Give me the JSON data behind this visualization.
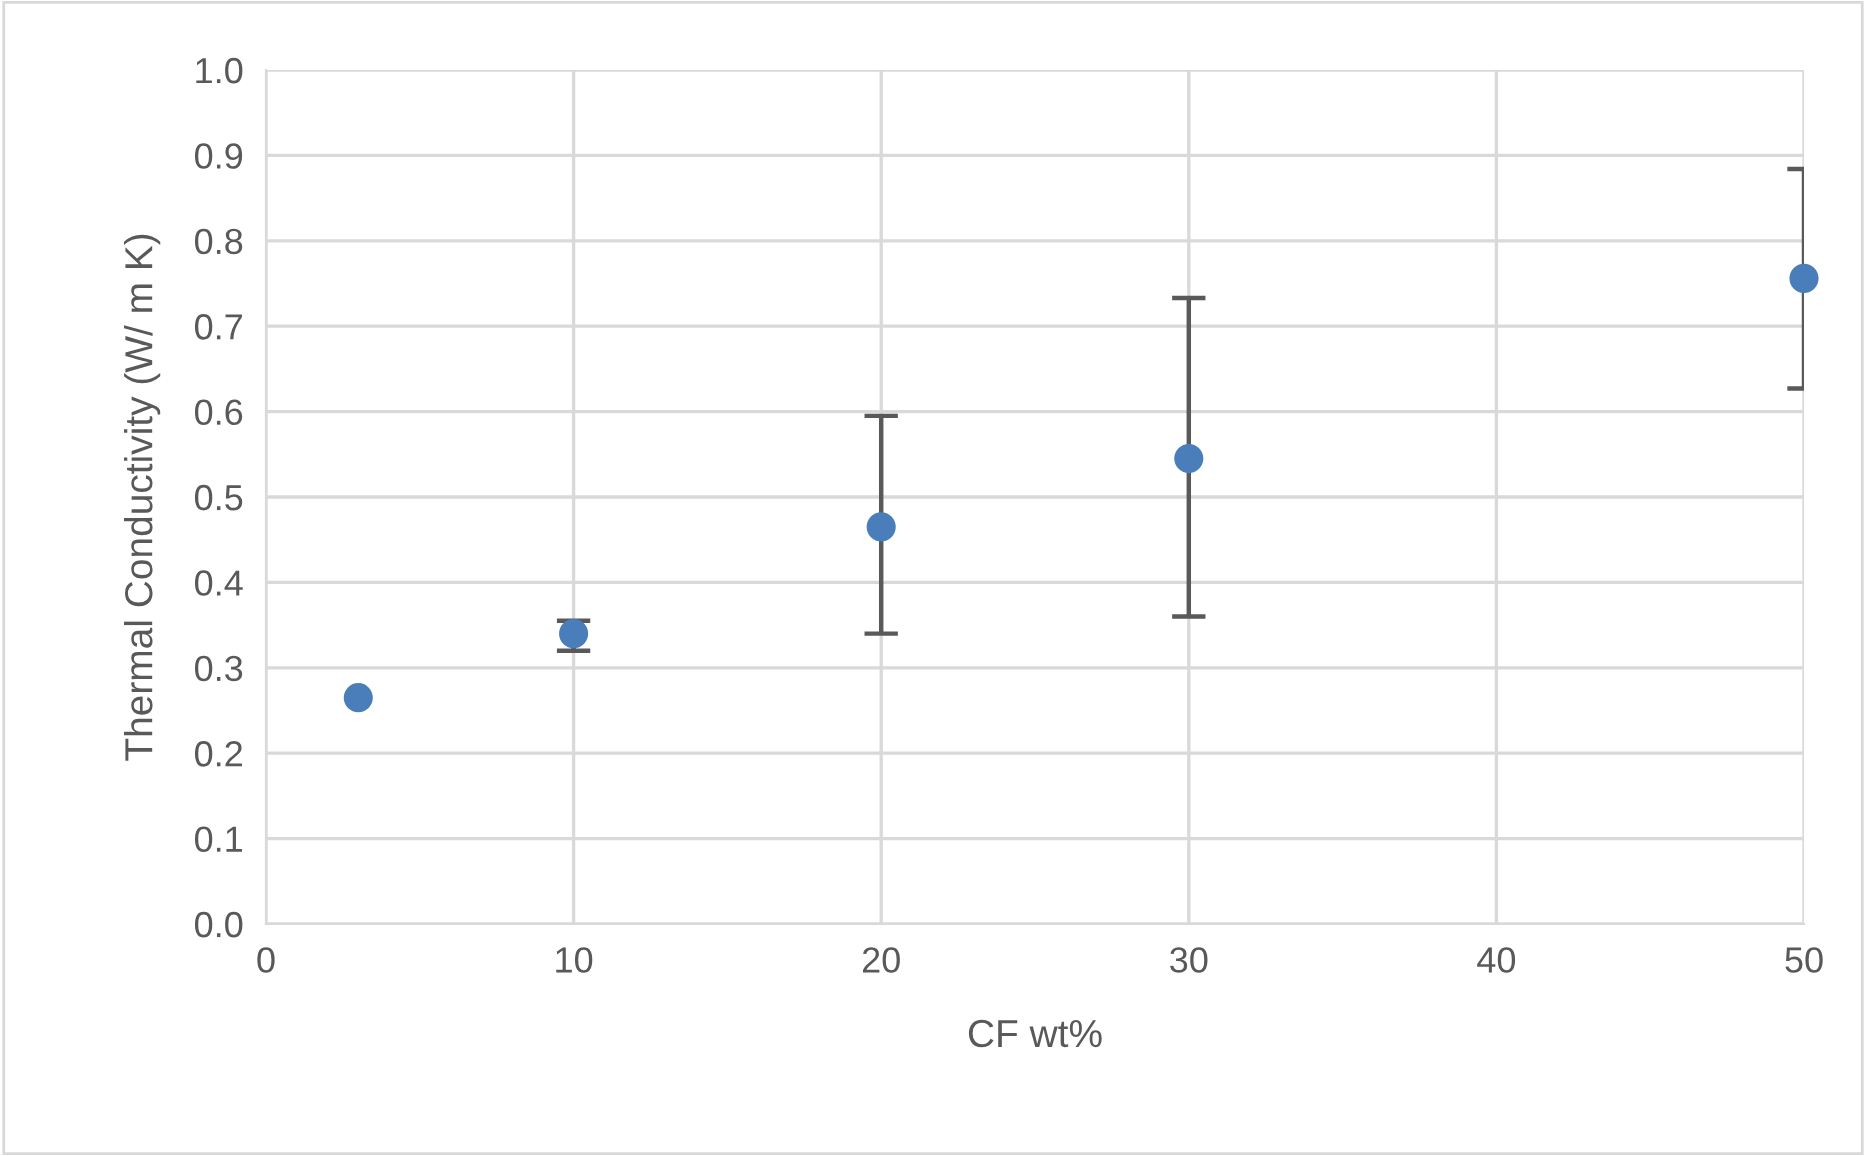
{
  "chart_data": {
    "type": "scatter",
    "xlabel": "CF wt%",
    "ylabel": "Thermal Conductivity (W/ m K)",
    "x": [
      3,
      10,
      20,
      30,
      50
    ],
    "series": [
      {
        "color": "#4a7ebb",
        "values": [
          0.265,
          0.34,
          0.465,
          0.545,
          0.756
        ],
        "errors": [
          null,
          [
            0.32,
            0.355
          ],
          [
            0.34,
            0.595
          ],
          [
            0.36,
            0.733
          ],
          [
            0.627,
            0.884
          ]
        ]
      }
    ],
    "xlim": [
      0,
      50
    ],
    "xticks": [
      0,
      10,
      20,
      30,
      40,
      50
    ],
    "ylim": [
      0,
      1.0
    ],
    "yticks": [
      {
        "value": 0,
        "label": "0.0"
      },
      {
        "value": 0.1,
        "label": "0.1"
      },
      {
        "value": 0.2,
        "label": "0.2"
      },
      {
        "value": 0.3,
        "label": "0.3"
      },
      {
        "value": 0.4,
        "label": "0.4"
      },
      {
        "value": 0.5,
        "label": "0.5"
      },
      {
        "value": 0.6,
        "label": "0.6"
      },
      {
        "value": 0.7,
        "label": "0.7"
      },
      {
        "value": 0.8,
        "label": "0.8"
      },
      {
        "value": 0.9,
        "label": "0.9"
      },
      {
        "value": 1.0,
        "label": "1.0"
      }
    ],
    "grid": true,
    "marker": "circle",
    "legend": false
  }
}
